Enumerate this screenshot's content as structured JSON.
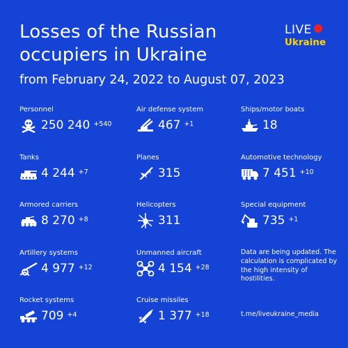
{
  "header": {
    "title": "Losses of the Russian occupiers in Ukraine",
    "subtitle": "from February 24, 2022 to August 07, 2023"
  },
  "logo": {
    "live": "LIVE",
    "ukraine": "Ukraine",
    "dot_color": "#e8232a",
    "ukraine_color": "#ffd400"
  },
  "background_color": "#1543d6",
  "stats": [
    {
      "label": "Personnel",
      "value": "250 240",
      "delta": "+540",
      "icon": "skull-crossbones-icon"
    },
    {
      "label": "Air defense system",
      "value": "467",
      "delta": "+1",
      "icon": "air-defense-icon"
    },
    {
      "label": "Ships/motor boats",
      "value": "18",
      "delta": "",
      "icon": "ship-icon"
    },
    {
      "label": "Tanks",
      "value": "4 244",
      "delta": "+7",
      "icon": "tank-icon"
    },
    {
      "label": "Planes",
      "value": "315",
      "delta": "",
      "icon": "plane-icon"
    },
    {
      "label": "Automotive technology",
      "value": "7 451",
      "delta": "+10",
      "icon": "truck-icon"
    },
    {
      "label": "Armored carriers",
      "value": "8 270",
      "delta": "+8",
      "icon": "armored-carrier-icon"
    },
    {
      "label": "Helicopters",
      "value": "311",
      "delta": "",
      "icon": "helicopter-icon"
    },
    {
      "label": "Special equipment",
      "value": "735",
      "delta": "+1",
      "icon": "excavator-icon"
    },
    {
      "label": "Artillery systems",
      "value": "4 977",
      "delta": "+12",
      "icon": "artillery-icon"
    },
    {
      "label": "Unmanned aircraft",
      "value": "4 154",
      "delta": "+28",
      "icon": "drone-icon"
    },
    {
      "label": "Rocket systems",
      "value": "709",
      "delta": "+4",
      "icon": "rocket-launcher-icon"
    },
    {
      "label": "Cruise missiles",
      "value": "1 377",
      "delta": "+18",
      "icon": "missile-icon"
    }
  ],
  "note": "Data are being updated. The calculation is complicated by the high intensity of hostilities.",
  "link": "t.me/liveukraine_media"
}
